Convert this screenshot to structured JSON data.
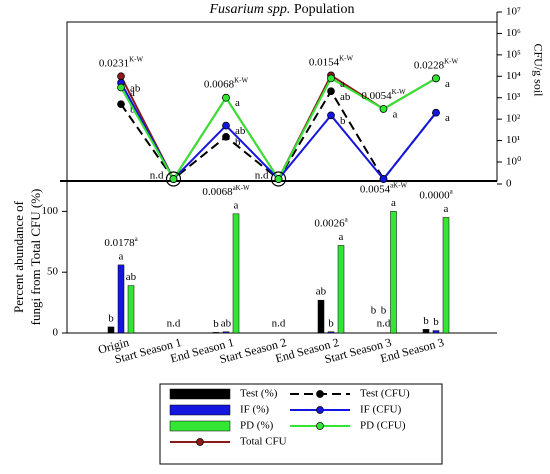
{
  "chart_data": {
    "type": "bar",
    "title_italic": "Fusarium spp.",
    "title_rest": " Population",
    "ylabel": [
      "Percent abundance of",
      "fungi from Total CFU (%)"
    ],
    "y2label": "CFU/g soil",
    "categories": [
      "Origin",
      "Start Season 1",
      "End Season 1",
      "Start Season 2",
      "End Season  2",
      "Start Season 3",
      "End Season 3"
    ],
    "ylim": [
      0,
      125
    ],
    "yticks": [
      0,
      50,
      100
    ],
    "y2lim": [
      0,
      10000000
    ],
    "y2_log": true,
    "y2ticks": [
      0,
      {
        "value": 1,
        "label": "10⁰"
      },
      {
        "value": 10,
        "label": "10¹"
      },
      {
        "value": 100,
        "label": "10²"
      },
      {
        "value": 1000,
        "label": "10³"
      },
      {
        "value": 10000,
        "label": "10⁴"
      },
      {
        "value": 100000,
        "label": "10⁵"
      },
      {
        "value": 1000000,
        "label": "10⁶"
      },
      {
        "value": 10000000,
        "label": "10⁷"
      }
    ],
    "nd_label": "n.d",
    "series": [
      {
        "name": "Test (%)",
        "color": "#000000",
        "values": [
          5,
          null,
          0.5,
          null,
          27,
          0,
          3
        ],
        "letters": [
          "b",
          null,
          "b",
          null,
          "ab",
          "b",
          "b"
        ]
      },
      {
        "name": "IF (%)",
        "color": "#1515e0",
        "values": [
          56,
          null,
          1,
          null,
          1,
          0,
          2
        ],
        "letters": [
          "a",
          null,
          "ab",
          null,
          "b",
          "b",
          "b"
        ]
      },
      {
        "name": "PD (%)",
        "color": "#33e633",
        "values": [
          39,
          null,
          98,
          null,
          72,
          100,
          95
        ],
        "letters": [
          "ab",
          null,
          "a",
          null,
          "a",
          "a",
          "a"
        ]
      },
      {
        "name": "Total CFU",
        "type": "line",
        "axis": "y2",
        "color": "#8b1a1a",
        "values": [
          10000,
          0,
          1000,
          0,
          11000,
          300,
          8000
        ]
      },
      {
        "name": "Test (CFU)",
        "type": "line",
        "axis": "y2",
        "style": "dashed",
        "color": "#000000",
        "values": [
          500,
          0,
          15,
          0,
          2000,
          0,
          200
        ],
        "letters": [
          "b",
          null,
          "b",
          null,
          "ab",
          null,
          null
        ]
      },
      {
        "name": "IF (CFU)",
        "type": "line",
        "axis": "y2",
        "color": "#1515e0",
        "values": [
          5000,
          0,
          50,
          0,
          150,
          0,
          200
        ],
        "letters": [
          "ab",
          null,
          "ab",
          null,
          "b",
          null,
          "a"
        ]
      },
      {
        "name": "PD (CFU)",
        "type": "line",
        "axis": "y2",
        "color": "#33e633",
        "values": [
          3000,
          0,
          1000,
          0,
          8000,
          300,
          8000
        ],
        "letters": [
          "a",
          null,
          "a",
          null,
          "a",
          "a",
          "a"
        ]
      }
    ],
    "annotations": [
      {
        "text": "0.0231",
        "sup": "K-W",
        "category": 0,
        "axis": "y2"
      },
      {
        "text": "0.0068",
        "sup": "K-W",
        "category": 2,
        "axis": "y2"
      },
      {
        "text": "0.0154",
        "sup": "K-W",
        "category": 4,
        "axis": "y2"
      },
      {
        "text": "0.0054",
        "sup": "K-W",
        "category": 5,
        "axis": "y2"
      },
      {
        "text": "0.0228",
        "sup": "K-W",
        "category": 6,
        "axis": "y2"
      },
      {
        "text": "0.0178",
        "sup": "a",
        "category": 0
      },
      {
        "text": "0.0068",
        "sup": "aK-W",
        "category": 2
      },
      {
        "text": "0.0026",
        "sup": "a",
        "category": 4
      },
      {
        "text": "0.0054",
        "sup": "aK-W",
        "category": 5
      },
      {
        "text": "0.0000",
        "sup": "a",
        "category": 6
      }
    ]
  }
}
